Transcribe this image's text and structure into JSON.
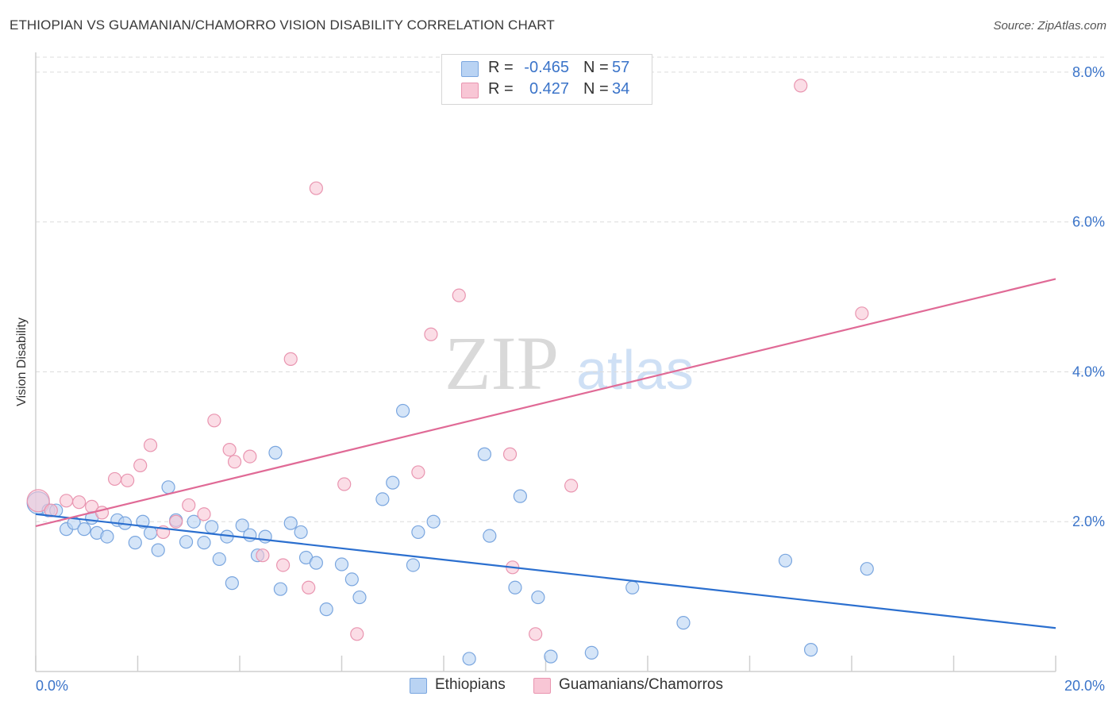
{
  "title": "ETHIOPIAN VS GUAMANIAN/CHAMORRO VISION DISABILITY CORRELATION CHART",
  "source": "Source: ZipAtlas.com",
  "watermark": {
    "zip": "ZIP",
    "atlas": "atlas"
  },
  "colors": {
    "blue_fill": "#b9d3f3",
    "blue_stroke": "#7aa6df",
    "blue_line": "#2b6fcf",
    "pink_fill": "#f8c6d5",
    "pink_stroke": "#e995b0",
    "pink_line": "#e06a96",
    "tick_text": "#3b74c9",
    "grid": "#dcdcdc"
  },
  "legend": {
    "rows": [
      {
        "r_label": "R =",
        "r_value": "-0.465",
        "n_label": "N =",
        "n_value": "57"
      },
      {
        "r_label": "R =",
        "r_value": "0.427",
        "n_label": "N =",
        "n_value": "34"
      }
    ]
  },
  "chart_data": {
    "type": "scatter",
    "title": "ETHIOPIAN VS GUAMANIAN/CHAMORRO VISION DISABILITY CORRELATION CHART",
    "xlabel": "",
    "ylabel": "Vision Disability",
    "xlim": [
      0,
      20
    ],
    "ylim": [
      0,
      8.2
    ],
    "x_tick_labels": [
      "0.0%",
      "20.0%"
    ],
    "y_ticks": [
      2,
      4,
      6,
      8
    ],
    "y_tick_labels": [
      "2.0%",
      "4.0%",
      "6.0%",
      "8.0%"
    ],
    "grid": true,
    "legend_position": "top-center",
    "series": [
      {
        "name": "Ethiopians",
        "color": "#b9d3f3",
        "trend": {
          "x": [
            0,
            20
          ],
          "y": [
            2.1,
            0.58
          ]
        },
        "points": [
          [
            0.05,
            2.25
          ],
          [
            0.25,
            2.15
          ],
          [
            0.4,
            2.15
          ],
          [
            0.6,
            1.9
          ],
          [
            0.75,
            1.98
          ],
          [
            0.95,
            1.9
          ],
          [
            1.1,
            2.05
          ],
          [
            1.2,
            1.85
          ],
          [
            1.4,
            1.8
          ],
          [
            1.6,
            2.02
          ],
          [
            1.75,
            1.98
          ],
          [
            1.95,
            1.72
          ],
          [
            2.1,
            2.0
          ],
          [
            2.25,
            1.85
          ],
          [
            2.4,
            1.62
          ],
          [
            2.6,
            2.46
          ],
          [
            2.75,
            2.02
          ],
          [
            2.95,
            1.73
          ],
          [
            3.1,
            2.0
          ],
          [
            3.3,
            1.72
          ],
          [
            3.45,
            1.93
          ],
          [
            3.6,
            1.5
          ],
          [
            3.75,
            1.8
          ],
          [
            3.85,
            1.18
          ],
          [
            4.05,
            1.95
          ],
          [
            4.2,
            1.82
          ],
          [
            4.35,
            1.55
          ],
          [
            4.5,
            1.8
          ],
          [
            4.7,
            2.92
          ],
          [
            4.8,
            1.1
          ],
          [
            5.0,
            1.98
          ],
          [
            5.2,
            1.86
          ],
          [
            5.3,
            1.52
          ],
          [
            5.5,
            1.45
          ],
          [
            5.7,
            0.83
          ],
          [
            6.0,
            1.43
          ],
          [
            6.2,
            1.23
          ],
          [
            6.35,
            0.99
          ],
          [
            6.8,
            2.3
          ],
          [
            7.0,
            2.52
          ],
          [
            7.2,
            3.48
          ],
          [
            7.4,
            1.42
          ],
          [
            7.5,
            1.86
          ],
          [
            7.8,
            2.0
          ],
          [
            8.5,
            0.17
          ],
          [
            8.8,
            2.9
          ],
          [
            8.9,
            1.81
          ],
          [
            9.4,
            1.12
          ],
          [
            9.5,
            2.34
          ],
          [
            9.85,
            0.99
          ],
          [
            10.1,
            0.2
          ],
          [
            10.9,
            0.25
          ],
          [
            11.7,
            1.12
          ],
          [
            12.7,
            0.65
          ],
          [
            14.7,
            1.48
          ],
          [
            15.2,
            0.29
          ],
          [
            16.3,
            1.37
          ]
        ]
      },
      {
        "name": "Guamanians/Chamorros",
        "color": "#f8c6d5",
        "trend": {
          "x": [
            0,
            20
          ],
          "y": [
            1.94,
            5.24
          ]
        },
        "points": [
          [
            0.05,
            2.28
          ],
          [
            0.3,
            2.15
          ],
          [
            0.6,
            2.28
          ],
          [
            0.85,
            2.26
          ],
          [
            1.1,
            2.2
          ],
          [
            1.3,
            2.12
          ],
          [
            1.55,
            2.57
          ],
          [
            1.8,
            2.55
          ],
          [
            2.05,
            2.75
          ],
          [
            2.25,
            3.02
          ],
          [
            2.5,
            1.86
          ],
          [
            2.75,
            2.0
          ],
          [
            3.0,
            2.22
          ],
          [
            3.3,
            2.1
          ],
          [
            3.5,
            3.35
          ],
          [
            3.8,
            2.96
          ],
          [
            3.9,
            2.8
          ],
          [
            4.2,
            2.87
          ],
          [
            4.45,
            1.55
          ],
          [
            4.85,
            1.42
          ],
          [
            5.0,
            4.17
          ],
          [
            5.35,
            1.12
          ],
          [
            5.5,
            6.45
          ],
          [
            6.05,
            2.5
          ],
          [
            6.3,
            0.5
          ],
          [
            7.5,
            2.66
          ],
          [
            7.75,
            4.5
          ],
          [
            8.3,
            5.02
          ],
          [
            9.3,
            2.9
          ],
          [
            9.35,
            1.39
          ],
          [
            9.8,
            0.5
          ],
          [
            10.5,
            2.48
          ],
          [
            15.0,
            7.82
          ],
          [
            16.2,
            4.78
          ]
        ]
      }
    ]
  },
  "bottom_legend": [
    "Ethiopians",
    "Guamanians/Chamorros"
  ]
}
